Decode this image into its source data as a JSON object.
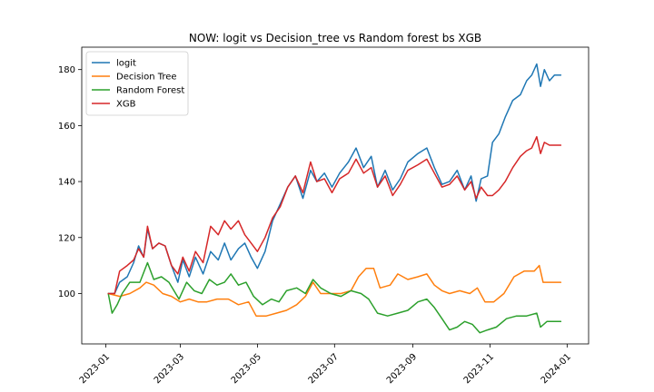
{
  "chart_data": {
    "type": "line",
    "title": "NOW: logit vs Decision_tree vs Random forest bs XGB",
    "xlabel": "",
    "ylabel": "",
    "x_ticks": [
      "2023-01",
      "2023-03",
      "2023-05",
      "2023-07",
      "2023-09",
      "2023-11",
      "2024-01"
    ],
    "y_ticks": [
      100,
      120,
      140,
      160,
      180
    ],
    "xlim": [
      "2022-12-13",
      "2024-01-18"
    ],
    "ylim": [
      82,
      188
    ],
    "grid": false,
    "legend_position": "top-left",
    "series": [
      {
        "name": "logit",
        "color": "#1f77b4",
        "points": [
          [
            "2023-01-03",
            100
          ],
          [
            "2023-01-08",
            100
          ],
          [
            "2023-01-12",
            104
          ],
          [
            "2023-01-18",
            106
          ],
          [
            "2023-01-23",
            111
          ],
          [
            "2023-01-27",
            117
          ],
          [
            "2023-01-31",
            113
          ],
          [
            "2023-02-03",
            123
          ],
          [
            "2023-02-07",
            116
          ],
          [
            "2023-02-12",
            118
          ],
          [
            "2023-02-17",
            117
          ],
          [
            "2023-02-22",
            110
          ],
          [
            "2023-02-27",
            104
          ],
          [
            "2023-03-03",
            112
          ],
          [
            "2023-03-08",
            106
          ],
          [
            "2023-03-13",
            113
          ],
          [
            "2023-03-19",
            107
          ],
          [
            "2023-03-25",
            115
          ],
          [
            "2023-03-31",
            112
          ],
          [
            "2023-04-05",
            118
          ],
          [
            "2023-04-10",
            112
          ],
          [
            "2023-04-16",
            116
          ],
          [
            "2023-04-21",
            118
          ],
          [
            "2023-04-26",
            113
          ],
          [
            "2023-05-01",
            109
          ],
          [
            "2023-05-07",
            115
          ],
          [
            "2023-05-13",
            126
          ],
          [
            "2023-05-19",
            132
          ],
          [
            "2023-05-25",
            138
          ],
          [
            "2023-05-31",
            142
          ],
          [
            "2023-06-06",
            134
          ],
          [
            "2023-06-12",
            144
          ],
          [
            "2023-06-17",
            140
          ],
          [
            "2023-06-23",
            143
          ],
          [
            "2023-06-29",
            138
          ],
          [
            "2023-07-05",
            143
          ],
          [
            "2023-07-12",
            147
          ],
          [
            "2023-07-18",
            152
          ],
          [
            "2023-07-24",
            145
          ],
          [
            "2023-07-30",
            149
          ],
          [
            "2023-08-04",
            138
          ],
          [
            "2023-08-10",
            144
          ],
          [
            "2023-08-16",
            137
          ],
          [
            "2023-08-22",
            141
          ],
          [
            "2023-08-28",
            147
          ],
          [
            "2023-09-05",
            150
          ],
          [
            "2023-09-12",
            152
          ],
          [
            "2023-09-18",
            145
          ],
          [
            "2023-09-24",
            139
          ],
          [
            "2023-09-30",
            140
          ],
          [
            "2023-10-06",
            144
          ],
          [
            "2023-10-12",
            137
          ],
          [
            "2023-10-17",
            142
          ],
          [
            "2023-10-21",
            133
          ],
          [
            "2023-10-25",
            141
          ],
          [
            "2023-10-30",
            142
          ],
          [
            "2023-11-03",
            154
          ],
          [
            "2023-11-08",
            157
          ],
          [
            "2023-11-13",
            163
          ],
          [
            "2023-11-19",
            169
          ],
          [
            "2023-11-25",
            171
          ],
          [
            "2023-11-30",
            176
          ],
          [
            "2023-12-04",
            178
          ],
          [
            "2023-12-08",
            182
          ],
          [
            "2023-12-11",
            174
          ],
          [
            "2023-12-14",
            180
          ],
          [
            "2023-12-18",
            176
          ],
          [
            "2023-12-22",
            178
          ],
          [
            "2023-12-27",
            178
          ]
        ]
      },
      {
        "name": "Decision Tree",
        "color": "#ff7f0e",
        "points": [
          [
            "2023-01-03",
            100
          ],
          [
            "2023-01-12",
            99
          ],
          [
            "2023-01-20",
            100
          ],
          [
            "2023-01-28",
            102
          ],
          [
            "2023-02-02",
            104
          ],
          [
            "2023-02-08",
            103
          ],
          [
            "2023-02-15",
            100
          ],
          [
            "2023-02-22",
            99
          ],
          [
            "2023-03-01",
            97
          ],
          [
            "2023-03-08",
            98
          ],
          [
            "2023-03-15",
            97
          ],
          [
            "2023-03-22",
            97
          ],
          [
            "2023-03-30",
            98
          ],
          [
            "2023-04-08",
            98
          ],
          [
            "2023-04-16",
            96
          ],
          [
            "2023-04-24",
            97
          ],
          [
            "2023-04-30",
            92
          ],
          [
            "2023-05-08",
            92
          ],
          [
            "2023-05-16",
            93
          ],
          [
            "2023-05-24",
            94
          ],
          [
            "2023-06-01",
            96
          ],
          [
            "2023-06-08",
            99
          ],
          [
            "2023-06-14",
            104
          ],
          [
            "2023-06-20",
            100
          ],
          [
            "2023-06-28",
            100
          ],
          [
            "2023-07-06",
            100
          ],
          [
            "2023-07-14",
            101
          ],
          [
            "2023-07-20",
            106
          ],
          [
            "2023-07-26",
            109
          ],
          [
            "2023-08-01",
            109
          ],
          [
            "2023-08-06",
            102
          ],
          [
            "2023-08-14",
            103
          ],
          [
            "2023-08-20",
            107
          ],
          [
            "2023-08-28",
            105
          ],
          [
            "2023-09-05",
            106
          ],
          [
            "2023-09-12",
            107
          ],
          [
            "2023-09-18",
            103
          ],
          [
            "2023-09-24",
            101
          ],
          [
            "2023-09-30",
            100
          ],
          [
            "2023-10-08",
            101
          ],
          [
            "2023-10-16",
            100
          ],
          [
            "2023-10-22",
            102
          ],
          [
            "2023-10-28",
            97
          ],
          [
            "2023-11-04",
            97
          ],
          [
            "2023-11-12",
            100
          ],
          [
            "2023-11-20",
            106
          ],
          [
            "2023-11-28",
            108
          ],
          [
            "2023-12-06",
            108
          ],
          [
            "2023-12-10",
            110
          ],
          [
            "2023-12-13",
            104
          ],
          [
            "2023-12-20",
            104
          ],
          [
            "2023-12-27",
            104
          ]
        ]
      },
      {
        "name": "Random Forest",
        "color": "#2ca02c",
        "points": [
          [
            "2023-01-03",
            100
          ],
          [
            "2023-01-06",
            93
          ],
          [
            "2023-01-10",
            96
          ],
          [
            "2023-01-14",
            100
          ],
          [
            "2023-01-20",
            104
          ],
          [
            "2023-01-28",
            104
          ],
          [
            "2023-02-03",
            111
          ],
          [
            "2023-02-08",
            105
          ],
          [
            "2023-02-14",
            106
          ],
          [
            "2023-02-20",
            104
          ],
          [
            "2023-02-28",
            98
          ],
          [
            "2023-03-06",
            104
          ],
          [
            "2023-03-12",
            101
          ],
          [
            "2023-03-18",
            100
          ],
          [
            "2023-03-24",
            105
          ],
          [
            "2023-03-30",
            103
          ],
          [
            "2023-04-05",
            104
          ],
          [
            "2023-04-10",
            107
          ],
          [
            "2023-04-16",
            103
          ],
          [
            "2023-04-22",
            104
          ],
          [
            "2023-04-28",
            99
          ],
          [
            "2023-05-05",
            96
          ],
          [
            "2023-05-12",
            98
          ],
          [
            "2023-05-18",
            97
          ],
          [
            "2023-05-24",
            101
          ],
          [
            "2023-06-01",
            102
          ],
          [
            "2023-06-08",
            100
          ],
          [
            "2023-06-14",
            105
          ],
          [
            "2023-06-20",
            102
          ],
          [
            "2023-06-28",
            100
          ],
          [
            "2023-07-06",
            99
          ],
          [
            "2023-07-14",
            101
          ],
          [
            "2023-07-22",
            100
          ],
          [
            "2023-07-28",
            98
          ],
          [
            "2023-08-04",
            93
          ],
          [
            "2023-08-12",
            92
          ],
          [
            "2023-08-20",
            93
          ],
          [
            "2023-08-28",
            94
          ],
          [
            "2023-09-05",
            97
          ],
          [
            "2023-09-12",
            98
          ],
          [
            "2023-09-18",
            95
          ],
          [
            "2023-09-24",
            91
          ],
          [
            "2023-09-30",
            87
          ],
          [
            "2023-10-06",
            88
          ],
          [
            "2023-10-12",
            90
          ],
          [
            "2023-10-18",
            89
          ],
          [
            "2023-10-24",
            86
          ],
          [
            "2023-10-30",
            87
          ],
          [
            "2023-11-06",
            88
          ],
          [
            "2023-11-14",
            91
          ],
          [
            "2023-11-22",
            92
          ],
          [
            "2023-11-30",
            92
          ],
          [
            "2023-12-08",
            93
          ],
          [
            "2023-12-11",
            88
          ],
          [
            "2023-12-16",
            90
          ],
          [
            "2023-12-20",
            90
          ],
          [
            "2023-12-27",
            90
          ]
        ]
      },
      {
        "name": "XGB",
        "color": "#d62728",
        "points": [
          [
            "2023-01-03",
            100
          ],
          [
            "2023-01-08",
            100
          ],
          [
            "2023-01-12",
            108
          ],
          [
            "2023-01-18",
            110
          ],
          [
            "2023-01-23",
            112
          ],
          [
            "2023-01-27",
            116
          ],
          [
            "2023-01-31",
            113
          ],
          [
            "2023-02-03",
            124
          ],
          [
            "2023-02-07",
            116
          ],
          [
            "2023-02-12",
            118
          ],
          [
            "2023-02-17",
            117
          ],
          [
            "2023-02-22",
            110
          ],
          [
            "2023-02-27",
            107
          ],
          [
            "2023-03-03",
            113
          ],
          [
            "2023-03-08",
            108
          ],
          [
            "2023-03-13",
            115
          ],
          [
            "2023-03-19",
            111
          ],
          [
            "2023-03-25",
            124
          ],
          [
            "2023-03-31",
            121
          ],
          [
            "2023-04-05",
            126
          ],
          [
            "2023-04-10",
            123
          ],
          [
            "2023-04-16",
            126
          ],
          [
            "2023-04-21",
            121
          ],
          [
            "2023-04-26",
            118
          ],
          [
            "2023-05-01",
            115
          ],
          [
            "2023-05-07",
            120
          ],
          [
            "2023-05-13",
            127
          ],
          [
            "2023-05-19",
            131
          ],
          [
            "2023-05-25",
            138
          ],
          [
            "2023-05-31",
            142
          ],
          [
            "2023-06-06",
            136
          ],
          [
            "2023-06-12",
            147
          ],
          [
            "2023-06-17",
            140
          ],
          [
            "2023-06-23",
            141
          ],
          [
            "2023-06-29",
            136
          ],
          [
            "2023-07-05",
            141
          ],
          [
            "2023-07-12",
            143
          ],
          [
            "2023-07-18",
            148
          ],
          [
            "2023-07-24",
            143
          ],
          [
            "2023-07-30",
            145
          ],
          [
            "2023-08-04",
            138
          ],
          [
            "2023-08-10",
            142
          ],
          [
            "2023-08-16",
            135
          ],
          [
            "2023-08-22",
            139
          ],
          [
            "2023-08-28",
            144
          ],
          [
            "2023-09-05",
            146
          ],
          [
            "2023-09-12",
            148
          ],
          [
            "2023-09-18",
            143
          ],
          [
            "2023-09-24",
            138
          ],
          [
            "2023-09-30",
            139
          ],
          [
            "2023-10-06",
            142
          ],
          [
            "2023-10-12",
            137
          ],
          [
            "2023-10-17",
            140
          ],
          [
            "2023-10-21",
            134
          ],
          [
            "2023-10-25",
            138
          ],
          [
            "2023-10-30",
            135
          ],
          [
            "2023-11-03",
            135
          ],
          [
            "2023-11-08",
            137
          ],
          [
            "2023-11-13",
            140
          ],
          [
            "2023-11-19",
            145
          ],
          [
            "2023-11-25",
            149
          ],
          [
            "2023-11-30",
            151
          ],
          [
            "2023-12-04",
            152
          ],
          [
            "2023-12-08",
            156
          ],
          [
            "2023-12-11",
            150
          ],
          [
            "2023-12-14",
            154
          ],
          [
            "2023-12-18",
            153
          ],
          [
            "2023-12-22",
            153
          ],
          [
            "2023-12-27",
            153
          ]
        ]
      }
    ]
  }
}
